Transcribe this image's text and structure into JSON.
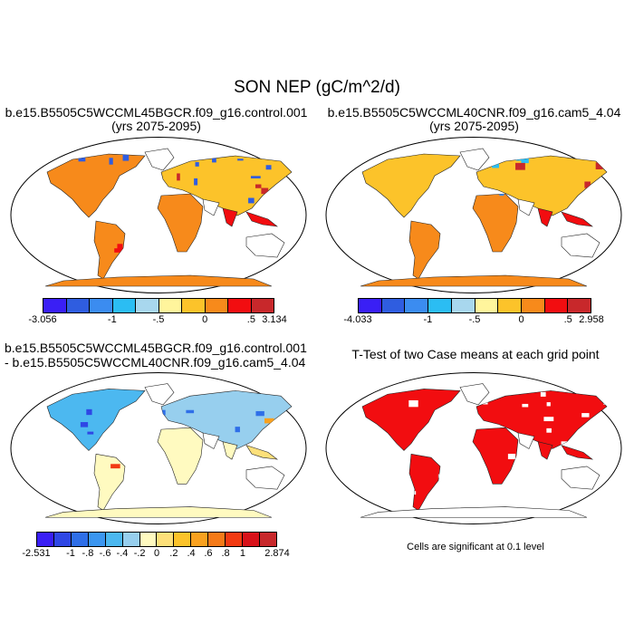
{
  "title": "SON NEP (gC/m^2/d)",
  "panels": {
    "top_left": {
      "title": "b.e15.B5505C5WCCML45BGCR.f09_g16.control.001",
      "subtitle": "(yrs 2075-2095)"
    },
    "top_right": {
      "title": "b.e15.B5505C5WCCML40CNR.f09_g16.cam5_4.04",
      "subtitle": "(yrs 2075-2095)"
    },
    "bottom_left": {
      "title_line1": "b.e15.B5505C5WCCML45BGCR.f09_g16.control.001",
      "title_line2": "- b.e15.B5505C5WCCML40CNR.f09_g16.cam5_4.04"
    },
    "bottom_right": {
      "title": "T-Test of two Case means at each grid point",
      "note": "Cells are significant at 0.1 level"
    }
  },
  "legends": {
    "top_left": {
      "colors": [
        "#3a1ff5",
        "#2f5de0",
        "#3b8cf0",
        "#2bbdf3",
        "#a8d7ee",
        "#fff59c",
        "#fcc32a",
        "#f78a1b",
        "#f20d10",
        "#c8282b"
      ],
      "ticks": [
        "-3.056",
        "-1",
        "-.5",
        "0",
        ".5",
        "3.134"
      ]
    },
    "top_right": {
      "colors": [
        "#3a1ff5",
        "#2f5de0",
        "#3b8cf0",
        "#2bbdf3",
        "#a8d7ee",
        "#fff59c",
        "#fcc32a",
        "#f78a1b",
        "#f20d10",
        "#c8282b"
      ],
      "ticks": [
        "-4.033",
        "-1",
        "-.5",
        "0",
        ".5",
        "2.958"
      ]
    },
    "bottom_left": {
      "colors": [
        "#3a1ff5",
        "#2f47e5",
        "#2f6fe8",
        "#3b96f0",
        "#4cb8f0",
        "#97cfee",
        "#fffac0",
        "#fde07a",
        "#fcc32a",
        "#f9a11f",
        "#f57a18",
        "#f23a12",
        "#d8121a",
        "#c8282b"
      ],
      "ticks": [
        "-2.531",
        "-1",
        "-.8",
        "-.6",
        "-.4",
        "-.2",
        "0",
        ".2",
        ".4",
        ".6",
        ".8",
        "1",
        "2.874"
      ]
    }
  },
  "map_colors": {
    "ocean": "#ffffff",
    "significance": "#f20d10",
    "antarctica_top": "#f78a1b",
    "antarctica_diff": "#fffac0"
  }
}
